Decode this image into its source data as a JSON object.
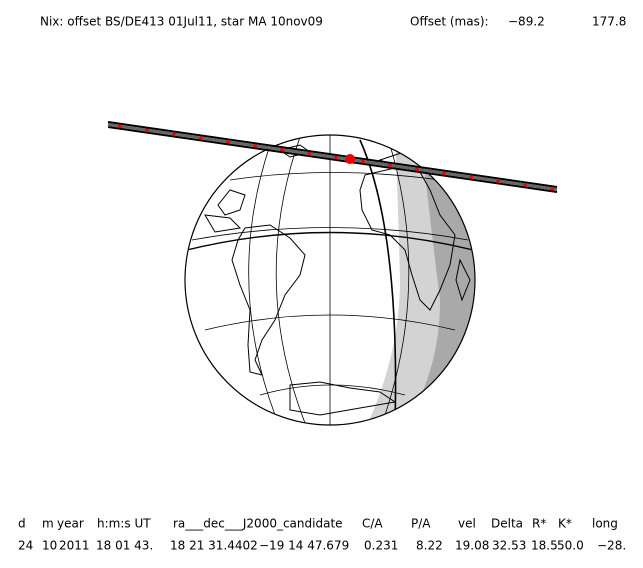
{
  "header": {
    "title": "Nix: offset BS/DE413 01Jul11, star MA 10nov09",
    "offset_label": "Offset (mas):",
    "offset_values": [
      "−89.2",
      "177.8"
    ]
  },
  "table": {
    "columns": [
      "d",
      "m",
      "year",
      "h:m:s UT",
      "ra___dec___J2000_candidate",
      "C/A",
      "P/A",
      "vel",
      "Delta",
      "R*",
      "K*",
      "long"
    ],
    "rows": [
      [
        "24",
        "10",
        "2011",
        "18 01 43.",
        "18 21 31.4402",
        "−19 14 47.679",
        "0.231",
        "8.22",
        "19.08",
        "32.53",
        "18.5",
        "50.0",
        "−28."
      ]
    ]
  }
}
